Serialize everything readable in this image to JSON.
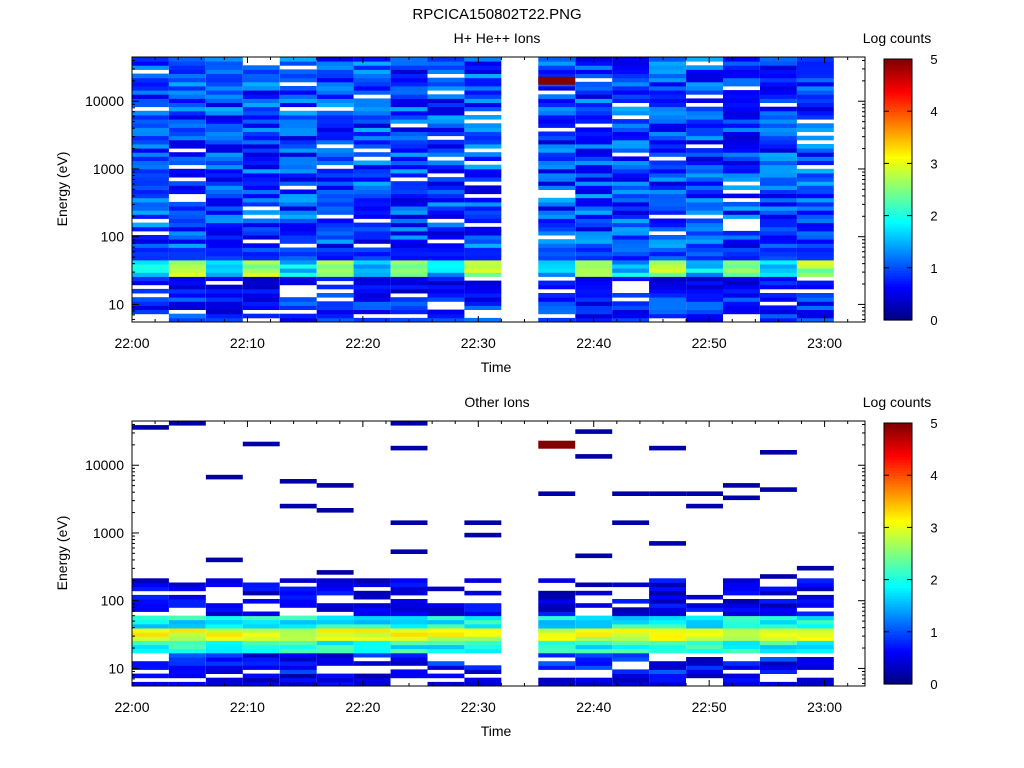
{
  "figure": {
    "title": "RPCICA150802T22.PNG"
  },
  "colorbar_label": "Log counts",
  "chart_data": [
    {
      "type": "heatmap",
      "title": "H+ He++ Ions",
      "xlabel": "Time",
      "ylabel": "Energy (eV)",
      "x_tick_labels": [
        "22:00",
        "22:10",
        "22:20",
        "22:30",
        "22:40",
        "22:50",
        "23:00"
      ],
      "x_ticks_min": [
        0,
        10,
        20,
        30,
        40,
        50,
        60
      ],
      "x_range_min": [
        0,
        63.5
      ],
      "y_scale": "log",
      "y_range": [
        5.5,
        45000
      ],
      "y_ticks": [
        10,
        100,
        1000,
        10000
      ],
      "y_tick_labels": [
        "10",
        "100",
        "1000",
        "10000"
      ],
      "colorbar": {
        "label": "Log counts",
        "range": [
          0,
          5
        ],
        "ticks": [
          0,
          1,
          2,
          3,
          4,
          5
        ]
      },
      "time_columns_start_min": [
        0,
        3.2,
        6.4,
        9.6,
        12.8,
        16.0,
        19.2,
        22.4,
        25.6,
        28.8,
        35.2,
        38.4,
        41.6,
        44.8,
        48.0,
        51.2,
        54.4,
        57.6
      ],
      "column_width_min": 3.2,
      "data_gap_min": [
        32.0,
        35.2
      ],
      "energy_band_log_counts": {
        "bands": [
          "10",
          "20",
          "30",
          "40",
          "100",
          "1000",
          "10000"
        ],
        "typical_values": [
          0.7,
          0.6,
          2.3,
          1.0,
          0.9,
          1.1,
          1.0
        ],
        "note_peak": {
          "time": "22:37",
          "energy_ev": 20000,
          "log_counts": 5
        }
      }
    },
    {
      "type": "heatmap",
      "title": "Other Ions",
      "xlabel": "Time",
      "ylabel": "Energy (eV)",
      "x_tick_labels": [
        "22:00",
        "22:10",
        "22:20",
        "22:30",
        "22:40",
        "22:50",
        "23:00"
      ],
      "x_ticks_min": [
        0,
        10,
        20,
        30,
        40,
        50,
        60
      ],
      "x_range_min": [
        0,
        63.5
      ],
      "y_scale": "log",
      "y_range": [
        5.5,
        45000
      ],
      "y_ticks": [
        10,
        100,
        1000,
        10000
      ],
      "y_tick_labels": [
        "10",
        "100",
        "1000",
        "10000"
      ],
      "colorbar": {
        "label": "Log counts",
        "range": [
          0,
          5
        ],
        "ticks": [
          0,
          1,
          2,
          3,
          4,
          5
        ]
      },
      "time_columns_start_min": [
        0,
        3.2,
        6.4,
        9.6,
        12.8,
        16.0,
        19.2,
        22.4,
        25.6,
        28.8,
        35.2,
        38.4,
        41.6,
        44.8,
        48.0,
        51.2,
        54.4,
        57.6
      ],
      "column_width_min": 3.2,
      "data_gap_min": [
        32.0,
        35.2
      ],
      "energy_band_log_counts": {
        "bands": [
          "10",
          "20",
          "30",
          "40",
          "100",
          "1000",
          "10000"
        ],
        "typical_values": [
          0.6,
          1.5,
          3.0,
          2.0,
          0.5,
          0.1,
          0.1
        ],
        "note_peak": {
          "time": "22:37",
          "energy_ev": 20000,
          "log_counts": 5
        }
      }
    }
  ]
}
